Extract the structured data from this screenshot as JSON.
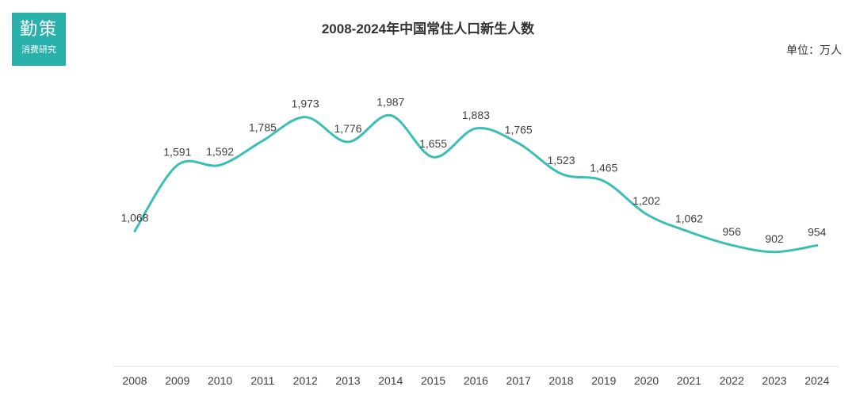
{
  "logo": {
    "main": "勤策",
    "sub": "消费研究"
  },
  "unit_label": "单位：万人",
  "colors": {
    "line": "#3bbfb5",
    "logo_bg": "#2ab1ac",
    "axis": "#d9d9d9"
  },
  "chart_data": {
    "type": "line",
    "title": "2008-2024年中国常住人口新生人数",
    "xlabel": "",
    "ylabel": "",
    "categories": [
      "2008",
      "2009",
      "2010",
      "2011",
      "2012",
      "2013",
      "2014",
      "2015",
      "2016",
      "2017",
      "2018",
      "2019",
      "2020",
      "2021",
      "2022",
      "2023",
      "2024"
    ],
    "series": [
      {
        "values": [
          1068,
          1591,
          1592,
          1785,
          1973,
          1776,
          1987,
          1655,
          1883,
          1765,
          1523,
          1465,
          1202,
          1062,
          956,
          902,
          954
        ],
        "labels": [
          "1,068",
          "1,591",
          "1,592",
          "1,785",
          "1,973",
          "1,776",
          "1,987",
          "1,655",
          "1,883",
          "1,765",
          "1,523",
          "1,465",
          "1,202",
          "1,062",
          "956",
          "902",
          "954"
        ]
      }
    ],
    "ylim": [
      0,
      2500
    ],
    "grid": false,
    "smooth": true
  }
}
